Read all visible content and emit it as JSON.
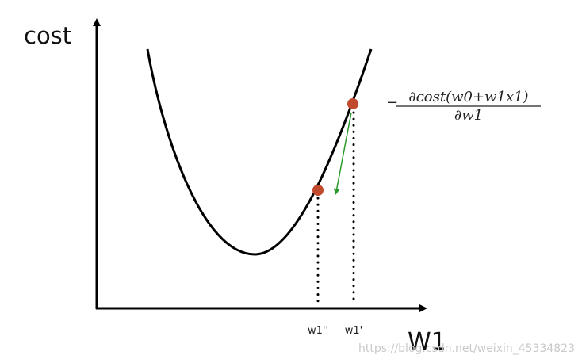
{
  "diagram": {
    "y_axis_label": "cost",
    "x_axis_label": "W1",
    "tick_labels": {
      "w1_new": "w1''",
      "w1_old": "w1'"
    },
    "formula": {
      "sign": "−",
      "numerator": "∂cost(w0+w1x1)",
      "denominator": "∂w1"
    },
    "colors": {
      "curve": "#000000",
      "points": "#c0492e",
      "arrow": "#2a9a2a"
    }
  },
  "watermark": "https://blog.csdn.net/weixin_45334823"
}
